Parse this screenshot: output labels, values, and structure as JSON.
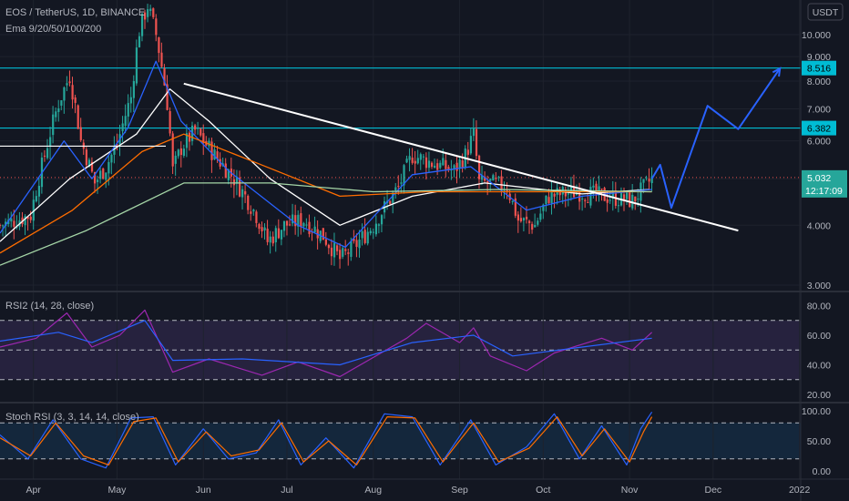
{
  "header": {
    "symbol_line": "EOS / TetherUS, 1D, BINANCE",
    "ema_line": "Ema 9/20/50/100/200"
  },
  "currency": "USDT",
  "countdown": "12:17:09",
  "chart_data": [
    {
      "type": "candlestick",
      "title": "EOS / TetherUS, 1D, BINANCE",
      "indicator_label": "Ema 9/20/50/100/200",
      "x_labels": [
        "Apr",
        "May",
        "Jun",
        "Jul",
        "Aug",
        "Sep",
        "Oct",
        "Nov",
        "Dec",
        "2022"
      ],
      "y_ticks": [
        "10.000",
        "9.000",
        "8.000",
        "7.000",
        "6.000",
        "5.000",
        "4.000",
        "3.000"
      ],
      "y_range": [
        3.0,
        10.8
      ],
      "last_price": "5.032",
      "horizontal_levels": [
        "8.516",
        "6.382"
      ],
      "colors": {
        "up": "#26a69a",
        "down": "#ef5350",
        "level": "#00bcd4",
        "projection": "#2962ff",
        "trendline": "#ffffff"
      },
      "price_path": [
        [
          "2021-03-20",
          4.0
        ],
        [
          "2021-03-31",
          4.2
        ],
        [
          "2021-04-05",
          5.6
        ],
        [
          "2021-04-10",
          7.2
        ],
        [
          "2021-04-14",
          8.2
        ],
        [
          "2021-04-18",
          6.0
        ],
        [
          "2021-04-23",
          4.9
        ],
        [
          "2021-04-27",
          5.3
        ],
        [
          "2021-05-01",
          5.9
        ],
        [
          "2021-05-06",
          7.4
        ],
        [
          "2021-05-09",
          10.2
        ],
        [
          "2021-05-12",
          11.5
        ],
        [
          "2021-05-15",
          10.0
        ],
        [
          "2021-05-19",
          7.2
        ],
        [
          "2021-05-21",
          5.2
        ],
        [
          "2021-05-24",
          5.8
        ],
        [
          "2021-05-29",
          6.3
        ],
        [
          "2021-06-05",
          5.6
        ],
        [
          "2021-06-12",
          5.0
        ],
        [
          "2021-06-20",
          4.2
        ],
        [
          "2021-06-24",
          3.7
        ],
        [
          "2021-06-30",
          4.0
        ],
        [
          "2021-07-07",
          4.1
        ],
        [
          "2021-07-14",
          3.8
        ],
        [
          "2021-07-20",
          3.4
        ],
        [
          "2021-07-25",
          3.6
        ],
        [
          "2021-08-01",
          4.0
        ],
        [
          "2021-08-10",
          4.8
        ],
        [
          "2021-08-15",
          5.6
        ],
        [
          "2021-08-22",
          5.4
        ],
        [
          "2021-08-30",
          5.2
        ],
        [
          "2021-09-03",
          5.6
        ],
        [
          "2021-09-06",
          6.2
        ],
        [
          "2021-09-08",
          4.9
        ],
        [
          "2021-09-12",
          4.9
        ],
        [
          "2021-09-18",
          4.8
        ],
        [
          "2021-09-22",
          4.1
        ],
        [
          "2021-09-28",
          4.0
        ],
        [
          "2021-10-03",
          4.6
        ],
        [
          "2021-10-13",
          4.7
        ],
        [
          "2021-10-23",
          4.6
        ],
        [
          "2021-11-02",
          4.5
        ],
        [
          "2021-11-09",
          5.0
        ]
      ],
      "ema_series": [
        {
          "color": "#ffffff",
          "points": [
            [
              "2021-03-20",
              3.7
            ],
            [
              "2021-04-14",
              5.0
            ],
            [
              "2021-05-08",
              6.2
            ],
            [
              "2021-05-20",
              7.7
            ],
            [
              "2021-06-03",
              6.6
            ],
            [
              "2021-06-25",
              5.0
            ],
            [
              "2021-07-20",
              4.0
            ],
            [
              "2021-08-15",
              4.6
            ],
            [
              "2021-09-10",
              4.9
            ],
            [
              "2021-10-15",
              4.65
            ],
            [
              "2021-11-08",
              4.75
            ]
          ]
        },
        {
          "color": "#2962ff",
          "points": [
            [
              "2021-03-20",
              3.85
            ],
            [
              "2021-04-12",
              6.0
            ],
            [
              "2021-04-22",
              5.0
            ],
            [
              "2021-05-05",
              6.4
            ],
            [
              "2021-05-15",
              8.8
            ],
            [
              "2021-05-24",
              6.6
            ],
            [
              "2021-06-10",
              5.2
            ],
            [
              "2021-07-05",
              4.0
            ],
            [
              "2021-07-22",
              3.6
            ],
            [
              "2021-08-15",
              5.1
            ],
            [
              "2021-09-05",
              5.3
            ],
            [
              "2021-09-25",
              4.3
            ],
            [
              "2021-10-15",
              4.6
            ],
            [
              "2021-11-09",
              4.75
            ]
          ]
        },
        {
          "color": "#ff6d00",
          "points": [
            [
              "2021-03-20",
              3.5
            ],
            [
              "2021-04-15",
              4.3
            ],
            [
              "2021-05-10",
              5.7
            ],
            [
              "2021-05-25",
              6.2
            ],
            [
              "2021-06-20",
              5.4
            ],
            [
              "2021-07-20",
              4.6
            ],
            [
              "2021-08-20",
              4.7
            ],
            [
              "2021-09-25",
              4.7
            ],
            [
              "2021-11-09",
              4.7
            ]
          ]
        },
        {
          "color": "#a5d6a7",
          "points": [
            [
              "2021-03-20",
              3.3
            ],
            [
              "2021-04-20",
              3.9
            ],
            [
              "2021-05-25",
              4.9
            ],
            [
              "2021-06-25",
              4.9
            ],
            [
              "2021-08-01",
              4.7
            ],
            [
              "2021-09-15",
              4.75
            ],
            [
              "2021-11-09",
              4.7
            ]
          ]
        }
      ],
      "trendline": [
        [
          "2021-05-25",
          7.9
        ],
        [
          "2021-12-10",
          3.9
        ]
      ],
      "projection": [
        [
          "2021-11-09",
          5.0
        ],
        [
          "2021-11-12",
          5.35
        ],
        [
          "2021-11-16",
          4.35
        ],
        [
          "2021-11-29",
          7.1
        ],
        [
          "2021-12-10",
          6.35
        ],
        [
          "2021-12-25",
          8.5
        ]
      ]
    },
    {
      "type": "line",
      "title": "RSI2 (14, 28, close)",
      "y_ticks": [
        "80.00",
        "60.00",
        "40.00",
        "20.00"
      ],
      "y_range": [
        17,
        88
      ],
      "band": [
        30,
        70
      ],
      "mid_line": 50,
      "series": [
        {
          "color": "#9c27b0",
          "points": [
            [
              "2021-03-20",
              52
            ],
            [
              "2021-04-02",
              58
            ],
            [
              "2021-04-13",
              75
            ],
            [
              "2021-04-22",
              52
            ],
            [
              "2021-05-02",
              60
            ],
            [
              "2021-05-11",
              77
            ],
            [
              "2021-05-21",
              35
            ],
            [
              "2021-06-03",
              44
            ],
            [
              "2021-06-22",
              33
            ],
            [
              "2021-07-05",
              42
            ],
            [
              "2021-07-20",
              32
            ],
            [
              "2021-08-13",
              58
            ],
            [
              "2021-08-20",
              68
            ],
            [
              "2021-09-01",
              55
            ],
            [
              "2021-09-06",
              65
            ],
            [
              "2021-09-12",
              46
            ],
            [
              "2021-09-25",
              36
            ],
            [
              "2021-10-05",
              48
            ],
            [
              "2021-10-22",
              58
            ],
            [
              "2021-11-02",
              50
            ],
            [
              "2021-11-09",
              62
            ]
          ]
        },
        {
          "color": "#2962ff",
          "points": [
            [
              "2021-03-20",
              56
            ],
            [
              "2021-04-10",
              62
            ],
            [
              "2021-04-22",
              55
            ],
            [
              "2021-05-11",
              70
            ],
            [
              "2021-05-21",
              43
            ],
            [
              "2021-06-15",
              44
            ],
            [
              "2021-07-20",
              40
            ],
            [
              "2021-08-15",
              55
            ],
            [
              "2021-09-06",
              60
            ],
            [
              "2021-09-20",
              46
            ],
            [
              "2021-10-15",
              52
            ],
            [
              "2021-11-09",
              58
            ]
          ]
        }
      ]
    },
    {
      "type": "line",
      "title": "Stoch RSI (3, 3, 14, 14, close)",
      "y_ticks": [
        "100.00",
        "50.00",
        "0.00"
      ],
      "y_range": [
        -5,
        105
      ],
      "band": [
        20,
        80
      ],
      "series": [
        {
          "color": "#2962ff",
          "points": [
            [
              "2021-03-20",
              60
            ],
            [
              "2021-03-30",
              20
            ],
            [
              "2021-04-08",
              85
            ],
            [
              "2021-04-18",
              20
            ],
            [
              "2021-04-27",
              5
            ],
            [
              "2021-05-06",
              88
            ],
            [
              "2021-05-14",
              90
            ],
            [
              "2021-05-22",
              10
            ],
            [
              "2021-06-01",
              70
            ],
            [
              "2021-06-10",
              20
            ],
            [
              "2021-06-20",
              30
            ],
            [
              "2021-06-28",
              85
            ],
            [
              "2021-07-06",
              10
            ],
            [
              "2021-07-15",
              55
            ],
            [
              "2021-07-25",
              5
            ],
            [
              "2021-08-05",
              95
            ],
            [
              "2021-08-15",
              90
            ],
            [
              "2021-08-25",
              10
            ],
            [
              "2021-09-05",
              85
            ],
            [
              "2021-09-14",
              10
            ],
            [
              "2021-09-25",
              40
            ],
            [
              "2021-10-05",
              95
            ],
            [
              "2021-10-14",
              20
            ],
            [
              "2021-10-22",
              75
            ],
            [
              "2021-10-31",
              10
            ],
            [
              "2021-11-05",
              70
            ],
            [
              "2021-11-09",
              98
            ]
          ]
        },
        {
          "color": "#ff6d00",
          "points": [
            [
              "2021-03-20",
              55
            ],
            [
              "2021-03-31",
              25
            ],
            [
              "2021-04-09",
              80
            ],
            [
              "2021-04-19",
              25
            ],
            [
              "2021-04-28",
              10
            ],
            [
              "2021-05-07",
              82
            ],
            [
              "2021-05-15",
              88
            ],
            [
              "2021-05-23",
              15
            ],
            [
              "2021-06-02",
              65
            ],
            [
              "2021-06-11",
              25
            ],
            [
              "2021-06-21",
              35
            ],
            [
              "2021-06-29",
              80
            ],
            [
              "2021-07-07",
              15
            ],
            [
              "2021-07-16",
              50
            ],
            [
              "2021-07-26",
              10
            ],
            [
              "2021-08-06",
              90
            ],
            [
              "2021-08-16",
              88
            ],
            [
              "2021-08-26",
              15
            ],
            [
              "2021-09-06",
              80
            ],
            [
              "2021-09-15",
              15
            ],
            [
              "2021-09-26",
              38
            ],
            [
              "2021-10-06",
              90
            ],
            [
              "2021-10-15",
              25
            ],
            [
              "2021-10-23",
              70
            ],
            [
              "2021-11-01",
              15
            ],
            [
              "2021-11-06",
              65
            ],
            [
              "2021-11-09",
              90
            ]
          ]
        }
      ]
    }
  ]
}
